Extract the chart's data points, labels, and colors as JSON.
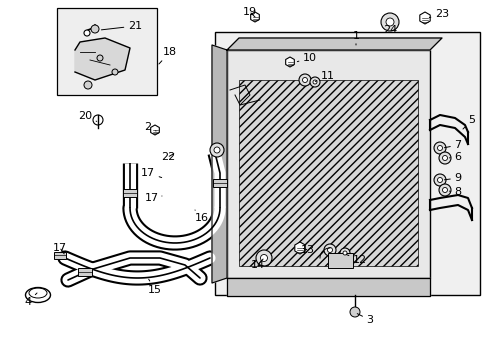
{
  "background_color": "#ffffff",
  "fig_width": 4.89,
  "fig_height": 3.6,
  "dpi": 100,
  "line_color": "#000000",
  "gray_fill": "#e8e8e8",
  "dark_gray": "#b0b0b0"
}
